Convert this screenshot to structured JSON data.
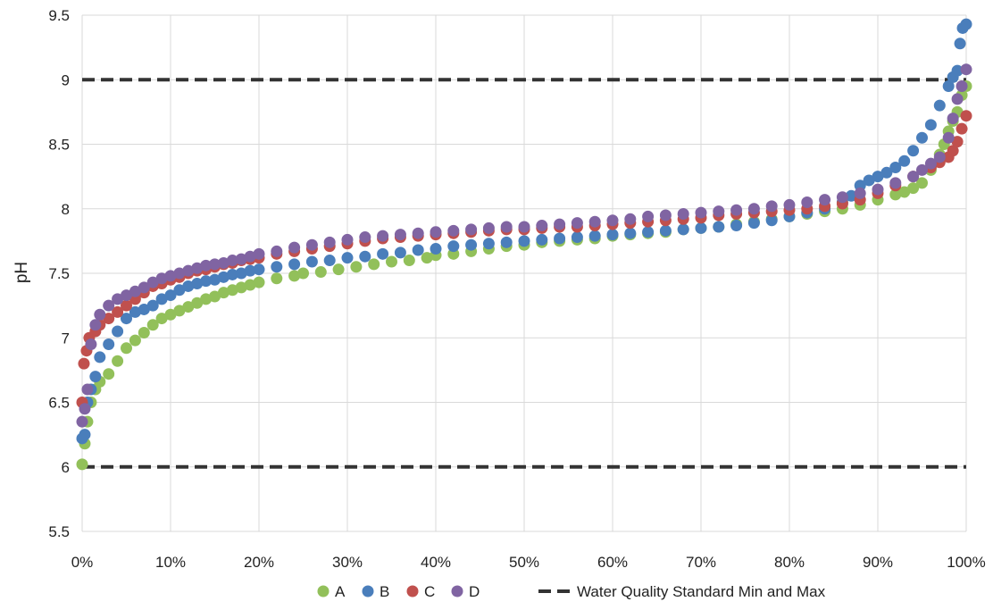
{
  "chart_data": {
    "type": "scatter",
    "title": "",
    "xlabel": "",
    "ylabel": "pH",
    "xlim": [
      0,
      100
    ],
    "ylim": [
      5.5,
      9.5
    ],
    "x_ticks": [
      "0%",
      "10%",
      "20%",
      "30%",
      "40%",
      "50%",
      "60%",
      "70%",
      "80%",
      "90%",
      "100%"
    ],
    "y_ticks": [
      "5.5",
      "6",
      "6.5",
      "7",
      "7.5",
      "8",
      "8.5",
      "9",
      "9.5"
    ],
    "grid": true,
    "legend_position": "bottom",
    "reference_lines": [
      {
        "name": "Water Quality Standard Min and Max",
        "y": [
          6,
          9
        ],
        "color": "#333333",
        "style": "dashed"
      }
    ],
    "series": [
      {
        "name": "A",
        "color": "#92c05a",
        "points": [
          [
            0,
            6.02
          ],
          [
            0.3,
            6.18
          ],
          [
            0.6,
            6.35
          ],
          [
            1,
            6.5
          ],
          [
            1.5,
            6.6
          ],
          [
            2,
            6.66
          ],
          [
            3,
            6.72
          ],
          [
            4,
            6.82
          ],
          [
            5,
            6.92
          ],
          [
            6,
            6.98
          ],
          [
            7,
            7.04
          ],
          [
            8,
            7.1
          ],
          [
            9,
            7.15
          ],
          [
            10,
            7.18
          ],
          [
            11,
            7.21
          ],
          [
            12,
            7.24
          ],
          [
            13,
            7.27
          ],
          [
            14,
            7.3
          ],
          [
            15,
            7.32
          ],
          [
            16,
            7.35
          ],
          [
            17,
            7.37
          ],
          [
            18,
            7.39
          ],
          [
            19,
            7.41
          ],
          [
            20,
            7.43
          ],
          [
            22,
            7.46
          ],
          [
            24,
            7.48
          ],
          [
            25,
            7.5
          ],
          [
            27,
            7.51
          ],
          [
            29,
            7.53
          ],
          [
            31,
            7.55
          ],
          [
            33,
            7.57
          ],
          [
            35,
            7.59
          ],
          [
            37,
            7.6
          ],
          [
            39,
            7.62
          ],
          [
            40,
            7.64
          ],
          [
            42,
            7.65
          ],
          [
            44,
            7.67
          ],
          [
            46,
            7.69
          ],
          [
            48,
            7.71
          ],
          [
            50,
            7.72
          ],
          [
            52,
            7.74
          ],
          [
            54,
            7.75
          ],
          [
            56,
            7.76
          ],
          [
            58,
            7.77
          ],
          [
            60,
            7.79
          ],
          [
            62,
            7.8
          ],
          [
            64,
            7.81
          ],
          [
            66,
            7.82
          ],
          [
            68,
            7.84
          ],
          [
            70,
            7.85
          ],
          [
            72,
            7.86
          ],
          [
            74,
            7.88
          ],
          [
            76,
            7.9
          ],
          [
            78,
            7.92
          ],
          [
            80,
            7.94
          ],
          [
            82,
            7.96
          ],
          [
            84,
            7.98
          ],
          [
            86,
            8.0
          ],
          [
            88,
            8.03
          ],
          [
            90,
            8.07
          ],
          [
            92,
            8.11
          ],
          [
            93,
            8.13
          ],
          [
            94,
            8.16
          ],
          [
            95,
            8.2
          ],
          [
            96,
            8.3
          ],
          [
            97,
            8.42
          ],
          [
            97.5,
            8.5
          ],
          [
            98,
            8.6
          ],
          [
            98.5,
            8.68
          ],
          [
            99,
            8.75
          ],
          [
            99.5,
            8.88
          ],
          [
            100,
            8.95
          ]
        ]
      },
      {
        "name": "B",
        "color": "#4a7ebb",
        "points": [
          [
            0,
            6.22
          ],
          [
            0.3,
            6.25
          ],
          [
            0.6,
            6.5
          ],
          [
            1,
            6.6
          ],
          [
            1.5,
            6.7
          ],
          [
            2,
            6.85
          ],
          [
            3,
            6.95
          ],
          [
            4,
            7.05
          ],
          [
            5,
            7.15
          ],
          [
            6,
            7.2
          ],
          [
            7,
            7.22
          ],
          [
            8,
            7.25
          ],
          [
            9,
            7.3
          ],
          [
            10,
            7.33
          ],
          [
            11,
            7.37
          ],
          [
            12,
            7.4
          ],
          [
            13,
            7.42
          ],
          [
            14,
            7.44
          ],
          [
            15,
            7.45
          ],
          [
            16,
            7.47
          ],
          [
            17,
            7.49
          ],
          [
            18,
            7.5
          ],
          [
            19,
            7.52
          ],
          [
            20,
            7.53
          ],
          [
            22,
            7.55
          ],
          [
            24,
            7.57
          ],
          [
            26,
            7.59
          ],
          [
            28,
            7.6
          ],
          [
            30,
            7.62
          ],
          [
            32,
            7.63
          ],
          [
            34,
            7.65
          ],
          [
            36,
            7.66
          ],
          [
            38,
            7.68
          ],
          [
            40,
            7.69
          ],
          [
            42,
            7.71
          ],
          [
            44,
            7.72
          ],
          [
            46,
            7.73
          ],
          [
            48,
            7.74
          ],
          [
            50,
            7.75
          ],
          [
            52,
            7.76
          ],
          [
            54,
            7.77
          ],
          [
            56,
            7.78
          ],
          [
            58,
            7.79
          ],
          [
            60,
            7.8
          ],
          [
            62,
            7.81
          ],
          [
            64,
            7.82
          ],
          [
            66,
            7.83
          ],
          [
            68,
            7.84
          ],
          [
            70,
            7.85
          ],
          [
            72,
            7.86
          ],
          [
            74,
            7.87
          ],
          [
            76,
            7.89
          ],
          [
            78,
            7.91
          ],
          [
            80,
            7.94
          ],
          [
            82,
            7.97
          ],
          [
            84,
            8.0
          ],
          [
            86,
            8.05
          ],
          [
            87,
            8.1
          ],
          [
            88,
            8.18
          ],
          [
            89,
            8.22
          ],
          [
            90,
            8.25
          ],
          [
            91,
            8.28
          ],
          [
            92,
            8.32
          ],
          [
            93,
            8.37
          ],
          [
            94,
            8.45
          ],
          [
            95,
            8.55
          ],
          [
            96,
            8.65
          ],
          [
            97,
            8.8
          ],
          [
            98,
            8.95
          ],
          [
            98.5,
            9.02
          ],
          [
            99,
            9.07
          ],
          [
            99.3,
            9.28
          ],
          [
            99.6,
            9.4
          ],
          [
            100,
            9.43
          ]
        ]
      },
      {
        "name": "C",
        "color": "#c0504d",
        "points": [
          [
            0,
            6.5
          ],
          [
            0.2,
            6.8
          ],
          [
            0.5,
            6.9
          ],
          [
            0.8,
            7.0
          ],
          [
            1.5,
            7.05
          ],
          [
            2,
            7.1
          ],
          [
            3,
            7.15
          ],
          [
            4,
            7.2
          ],
          [
            5,
            7.25
          ],
          [
            6,
            7.3
          ],
          [
            7,
            7.35
          ],
          [
            8,
            7.4
          ],
          [
            9,
            7.42
          ],
          [
            10,
            7.45
          ],
          [
            11,
            7.47
          ],
          [
            12,
            7.5
          ],
          [
            13,
            7.52
          ],
          [
            14,
            7.53
          ],
          [
            15,
            7.55
          ],
          [
            16,
            7.57
          ],
          [
            17,
            7.58
          ],
          [
            18,
            7.6
          ],
          [
            19,
            7.61
          ],
          [
            20,
            7.62
          ],
          [
            22,
            7.65
          ],
          [
            24,
            7.67
          ],
          [
            26,
            7.69
          ],
          [
            28,
            7.71
          ],
          [
            30,
            7.73
          ],
          [
            32,
            7.75
          ],
          [
            34,
            7.77
          ],
          [
            36,
            7.78
          ],
          [
            38,
            7.79
          ],
          [
            40,
            7.8
          ],
          [
            42,
            7.81
          ],
          [
            44,
            7.82
          ],
          [
            46,
            7.83
          ],
          [
            48,
            7.84
          ],
          [
            50,
            7.84
          ],
          [
            52,
            7.85
          ],
          [
            54,
            7.86
          ],
          [
            56,
            7.86
          ],
          [
            58,
            7.87
          ],
          [
            60,
            7.88
          ],
          [
            62,
            7.89
          ],
          [
            64,
            7.9
          ],
          [
            66,
            7.91
          ],
          [
            68,
            7.92
          ],
          [
            70,
            7.93
          ],
          [
            72,
            7.95
          ],
          [
            74,
            7.96
          ],
          [
            76,
            7.97
          ],
          [
            78,
            7.98
          ],
          [
            80,
            7.99
          ],
          [
            82,
            8.0
          ],
          [
            84,
            8.02
          ],
          [
            86,
            8.04
          ],
          [
            88,
            8.07
          ],
          [
            90,
            8.12
          ],
          [
            92,
            8.18
          ],
          [
            94,
            8.25
          ],
          [
            96,
            8.32
          ],
          [
            97,
            8.36
          ],
          [
            98,
            8.4
          ],
          [
            98.5,
            8.45
          ],
          [
            99,
            8.52
          ],
          [
            99.5,
            8.62
          ],
          [
            100,
            8.72
          ]
        ]
      },
      {
        "name": "D",
        "color": "#8064a2",
        "points": [
          [
            0,
            6.35
          ],
          [
            0.3,
            6.45
          ],
          [
            0.6,
            6.6
          ],
          [
            1,
            6.95
          ],
          [
            1.5,
            7.1
          ],
          [
            2,
            7.18
          ],
          [
            3,
            7.25
          ],
          [
            4,
            7.3
          ],
          [
            5,
            7.33
          ],
          [
            6,
            7.36
          ],
          [
            7,
            7.39
          ],
          [
            8,
            7.43
          ],
          [
            9,
            7.46
          ],
          [
            10,
            7.48
          ],
          [
            11,
            7.5
          ],
          [
            12,
            7.52
          ],
          [
            13,
            7.54
          ],
          [
            14,
            7.56
          ],
          [
            15,
            7.57
          ],
          [
            16,
            7.58
          ],
          [
            17,
            7.6
          ],
          [
            18,
            7.61
          ],
          [
            19,
            7.63
          ],
          [
            20,
            7.65
          ],
          [
            22,
            7.67
          ],
          [
            24,
            7.7
          ],
          [
            26,
            7.72
          ],
          [
            28,
            7.74
          ],
          [
            30,
            7.76
          ],
          [
            32,
            7.78
          ],
          [
            34,
            7.79
          ],
          [
            36,
            7.8
          ],
          [
            38,
            7.81
          ],
          [
            40,
            7.82
          ],
          [
            42,
            7.83
          ],
          [
            44,
            7.84
          ],
          [
            46,
            7.85
          ],
          [
            48,
            7.86
          ],
          [
            50,
            7.86
          ],
          [
            52,
            7.87
          ],
          [
            54,
            7.88
          ],
          [
            56,
            7.89
          ],
          [
            58,
            7.9
          ],
          [
            60,
            7.91
          ],
          [
            62,
            7.92
          ],
          [
            64,
            7.94
          ],
          [
            66,
            7.95
          ],
          [
            68,
            7.96
          ],
          [
            70,
            7.97
          ],
          [
            72,
            7.98
          ],
          [
            74,
            7.99
          ],
          [
            76,
            8.0
          ],
          [
            78,
            8.02
          ],
          [
            80,
            8.03
          ],
          [
            82,
            8.05
          ],
          [
            84,
            8.07
          ],
          [
            86,
            8.09
          ],
          [
            88,
            8.12
          ],
          [
            90,
            8.15
          ],
          [
            92,
            8.2
          ],
          [
            94,
            8.25
          ],
          [
            95,
            8.3
          ],
          [
            96,
            8.35
          ],
          [
            97,
            8.4
          ],
          [
            98,
            8.55
          ],
          [
            98.5,
            8.7
          ],
          [
            99,
            8.85
          ],
          [
            99.5,
            8.95
          ],
          [
            100,
            9.08
          ]
        ]
      }
    ]
  }
}
